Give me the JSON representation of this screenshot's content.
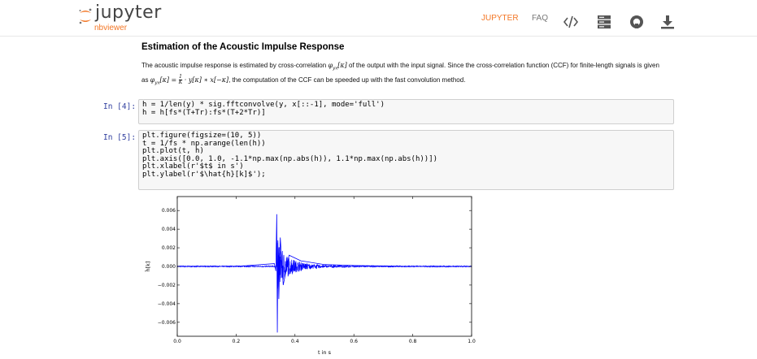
{
  "navbar": {
    "logo_text": "jupyter",
    "logo_sub": "nbviewer",
    "links": [
      "JUPYTER",
      "FAQ"
    ],
    "icons": [
      "code-icon",
      "server-icon",
      "github-icon",
      "download-icon"
    ],
    "accent_color": "#f37726"
  },
  "notebook": {
    "heading": "Estimation of the Acoustic Impulse Response",
    "paragraph": {
      "part1": "The acoustic impulse response is estimated by cross-correlation ",
      "math1": "φ",
      "math1_sub": "yx",
      "math1_arg": "[κ]",
      "part2": " of the output with the input signal. Since the cross-correlation function (CCF) for finite-length signals is given as ",
      "math2": "φ",
      "math2_sub": "yx",
      "math2_rest": "[κ] = ",
      "math2_frac_num": "1",
      "math2_frac_den": "K",
      "math2_tail": " · y[κ] ∗ x[−κ]",
      "part3": ", the computation of the CCF can be speeded up with the fast convolution method."
    },
    "cells": [
      {
        "prompt": "In [4]:",
        "lines": [
          "h = 1/len(y) * sig.fftconvolve(y, x[::-1], mode='full')",
          "h = h[fs*(T+Tr):fs*(T+2*Tr)]"
        ]
      },
      {
        "prompt": "In [5]:",
        "lines": [
          "plt.figure(figsize=(10, 5))",
          "t = 1/fs * np.arange(len(h))",
          "plt.plot(t, h)",
          "plt.axis([0.0, 1.0, -1.1*np.max(np.abs(h)), 1.1*np.max(np.abs(h))])",
          "plt.xlabel(r'$t$ in s')",
          "plt.ylabel(r'$\\hat{h}[k]$');"
        ]
      }
    ]
  },
  "chart_data": {
    "type": "line",
    "series_color": "#0000ff",
    "xlabel": "t in s",
    "ylabel": "ĥ[k]",
    "xlim": [
      0.0,
      1.0
    ],
    "ylim": [
      -0.0075,
      0.0075
    ],
    "xticks": [
      0.0,
      0.2,
      0.4,
      0.6,
      0.8,
      1.0
    ],
    "xtick_labels": [
      "0.0",
      "0.2",
      "0.4",
      "0.6",
      "0.8",
      "1.0"
    ],
    "yticks": [
      0.006,
      0.004,
      0.002,
      0.0,
      -0.002,
      -0.004,
      -0.006
    ],
    "ytick_labels": [
      "0.006",
      "0.004",
      "0.002",
      "0.000",
      "−0.002",
      "−0.004",
      "−0.006"
    ],
    "grid": false,
    "x": [
      0.0,
      0.2,
      0.33,
      0.335,
      0.338,
      0.34,
      0.342,
      0.345,
      0.35,
      0.36,
      0.38,
      0.42,
      0.5,
      0.6,
      0.8,
      1.0
    ],
    "y": [
      0.0,
      0.0,
      0.0003,
      -0.0005,
      0.0056,
      -0.0071,
      0.0028,
      -0.0035,
      0.0031,
      -0.002,
      0.0012,
      0.0006,
      0.0002,
      0.0001,
      0.0,
      0.0
    ]
  }
}
